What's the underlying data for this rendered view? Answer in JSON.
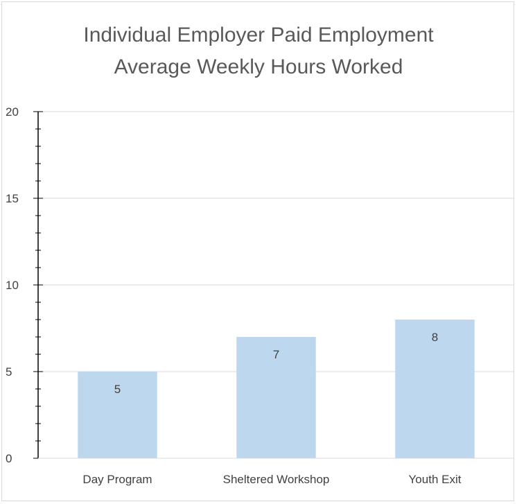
{
  "chart_data": {
    "type": "bar",
    "title": [
      "Individual Employer Paid Employment",
      "Average Weekly Hours Worked"
    ],
    "categories": [
      "Day Program",
      "Sheltered Workshop",
      "Youth Exit"
    ],
    "values": [
      5,
      7,
      8
    ],
    "data_labels": [
      "5",
      "7",
      "8"
    ],
    "xlabel": "",
    "ylabel": "",
    "ylim": [
      0,
      20
    ],
    "yticks": [
      0,
      5,
      10,
      15,
      20
    ],
    "grid": true,
    "legend": "none",
    "colors": {
      "bar": "#bdd7ee",
      "grid": "#d9d9d9",
      "axis": "#000000",
      "text": "#404040",
      "title": "#595959"
    }
  }
}
